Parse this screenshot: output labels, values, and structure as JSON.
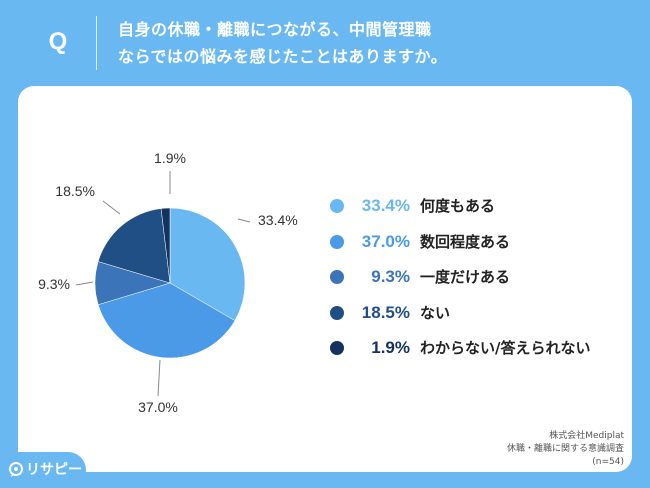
{
  "header": {
    "q_letter": "Q",
    "question_line1": "自身の休職・離職につながる、中間管理職",
    "question_line2": "ならではの悩みを感じたことはありますか。"
  },
  "chart_data": {
    "type": "pie",
    "title": "",
    "slices": [
      {
        "label": "何度もある",
        "value": 33.4,
        "display": "33.4%",
        "color": "#6ab8f2"
      },
      {
        "label": "数回程度ある",
        "value": 37.0,
        "display": "37.0%",
        "color": "#4a9ae8"
      },
      {
        "label": "一度だけある",
        "value": 9.3,
        "display": "9.3%",
        "color": "#3b74b8"
      },
      {
        "label": "ない",
        "value": 18.5,
        "display": "18.5%",
        "color": "#1f4f85"
      },
      {
        "label": "わからない/答えられない",
        "value": 1.9,
        "display": "1.9%",
        "color": "#14325e"
      }
    ],
    "start_angle_deg": 0,
    "direction": "clockwise"
  },
  "legend": {
    "items": [
      {
        "value": "33.4%",
        "label": "何度もある",
        "color": "#6ab8f2"
      },
      {
        "value": "37.0%",
        "label": "数回程度ある",
        "color": "#4a9ae8"
      },
      {
        "value": "9.3%",
        "label": "一度だけある",
        "color": "#3b74b8"
      },
      {
        "value": "18.5%",
        "label": "ない",
        "color": "#1f4f85"
      },
      {
        "value": "1.9%",
        "label": "わからない/答えられない",
        "color": "#14325e"
      }
    ]
  },
  "source": {
    "line1": "株式会社Mediplat",
    "line2": "休職・離職に関する意識調査",
    "line3": "(n=54)"
  },
  "brand": {
    "name": "リサピー",
    "icon": "speech-bubble-icon"
  },
  "colors": {
    "background": "#6ab8f2",
    "panel": "#ffffff"
  }
}
